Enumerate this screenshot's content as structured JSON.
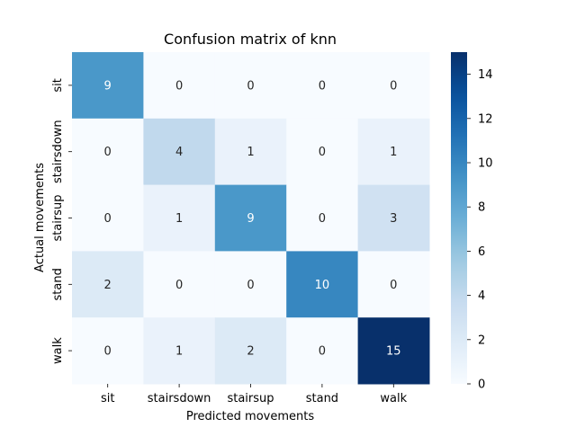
{
  "chart_data": {
    "type": "heatmap",
    "title": "Confusion matrix of knn",
    "xlabel": "Predicted movements",
    "ylabel": "Actual movements",
    "x_categories": [
      "sit",
      "stairsdown",
      "stairsup",
      "stand",
      "walk"
    ],
    "y_categories": [
      "sit",
      "stairsdown",
      "stairsup",
      "stand",
      "walk"
    ],
    "values": [
      [
        9,
        0,
        0,
        0,
        0
      ],
      [
        0,
        4,
        1,
        0,
        1
      ],
      [
        0,
        1,
        9,
        0,
        3
      ],
      [
        2,
        0,
        0,
        10,
        0
      ],
      [
        0,
        1,
        2,
        0,
        15
      ]
    ],
    "colorbar": {
      "colormap": "Blues",
      "min": 0,
      "max": 15,
      "ticks": [
        0,
        2,
        4,
        6,
        8,
        10,
        12,
        14
      ]
    },
    "annotations": true
  }
}
